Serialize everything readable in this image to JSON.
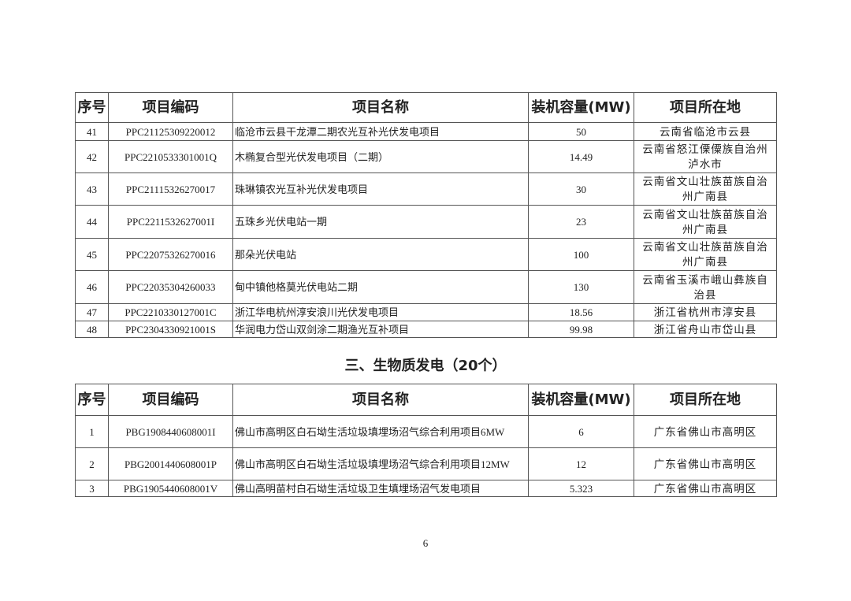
{
  "headers": [
    "序号",
    "项目编码",
    "项目名称",
    "装机容量(MW)",
    "项目所在地"
  ],
  "table1": {
    "rows": [
      {
        "no": "41",
        "code": "PPC21125309220012",
        "name": "临沧市云县干龙潭二期农光互补光伏发电项目",
        "capacity": "50",
        "location": "云南省临沧市云县"
      },
      {
        "no": "42",
        "code": "PPC2210533301001Q",
        "name": "木椭复合型光伏发电项目（二期）",
        "capacity": "14.49",
        "location": "云南省怒江傈僳族自治州泸水市"
      },
      {
        "no": "43",
        "code": "PPC21115326270017",
        "name": "珠琳镇农光互补光伏发电项目",
        "capacity": "30",
        "location": "云南省文山壮族苗族自治州广南县"
      },
      {
        "no": "44",
        "code": "PPC2211532627001I",
        "name": "五珠乡光伏电站一期",
        "capacity": "23",
        "location": "云南省文山壮族苗族自治州广南县"
      },
      {
        "no": "45",
        "code": "PPC22075326270016",
        "name": "那朵光伏电站",
        "capacity": "100",
        "location": "云南省文山壮族苗族自治州广南县"
      },
      {
        "no": "46",
        "code": "PPC22035304260033",
        "name": "甸中镇他格莫光伏电站二期",
        "capacity": "130",
        "location": "云南省玉溪市峨山彝族自治县"
      },
      {
        "no": "47",
        "code": "PPC2210330127001C",
        "name": "浙江华电杭州淳安浪川光伏发电项目",
        "capacity": "18.56",
        "location": "浙江省杭州市淳安县"
      },
      {
        "no": "48",
        "code": "PPC2304330921001S",
        "name": "华润电力岱山双剑涂二期渔光互补项目",
        "capacity": "99.98",
        "location": "浙江省舟山市岱山县"
      }
    ]
  },
  "section_title": "三、生物质发电（20个）",
  "table2": {
    "rows": [
      {
        "no": "1",
        "code": "PBG1908440608001I",
        "name": "佛山市高明区白石坳生活垃圾填埋场沼气综合利用项目6MW",
        "capacity": "6",
        "location": "广东省佛山市高明区"
      },
      {
        "no": "2",
        "code": "PBG2001440608001P",
        "name": "佛山市高明区白石坳生活垃圾填埋场沼气综合利用项目12MW",
        "capacity": "12",
        "location": "广东省佛山市高明区"
      },
      {
        "no": "3",
        "code": "PBG1905440608001V",
        "name": "佛山高明苗村白石坳生活垃圾卫生填埋场沼气发电项目",
        "capacity": "5.323",
        "location": "广东省佛山市高明区"
      }
    ]
  },
  "page_number": "6"
}
